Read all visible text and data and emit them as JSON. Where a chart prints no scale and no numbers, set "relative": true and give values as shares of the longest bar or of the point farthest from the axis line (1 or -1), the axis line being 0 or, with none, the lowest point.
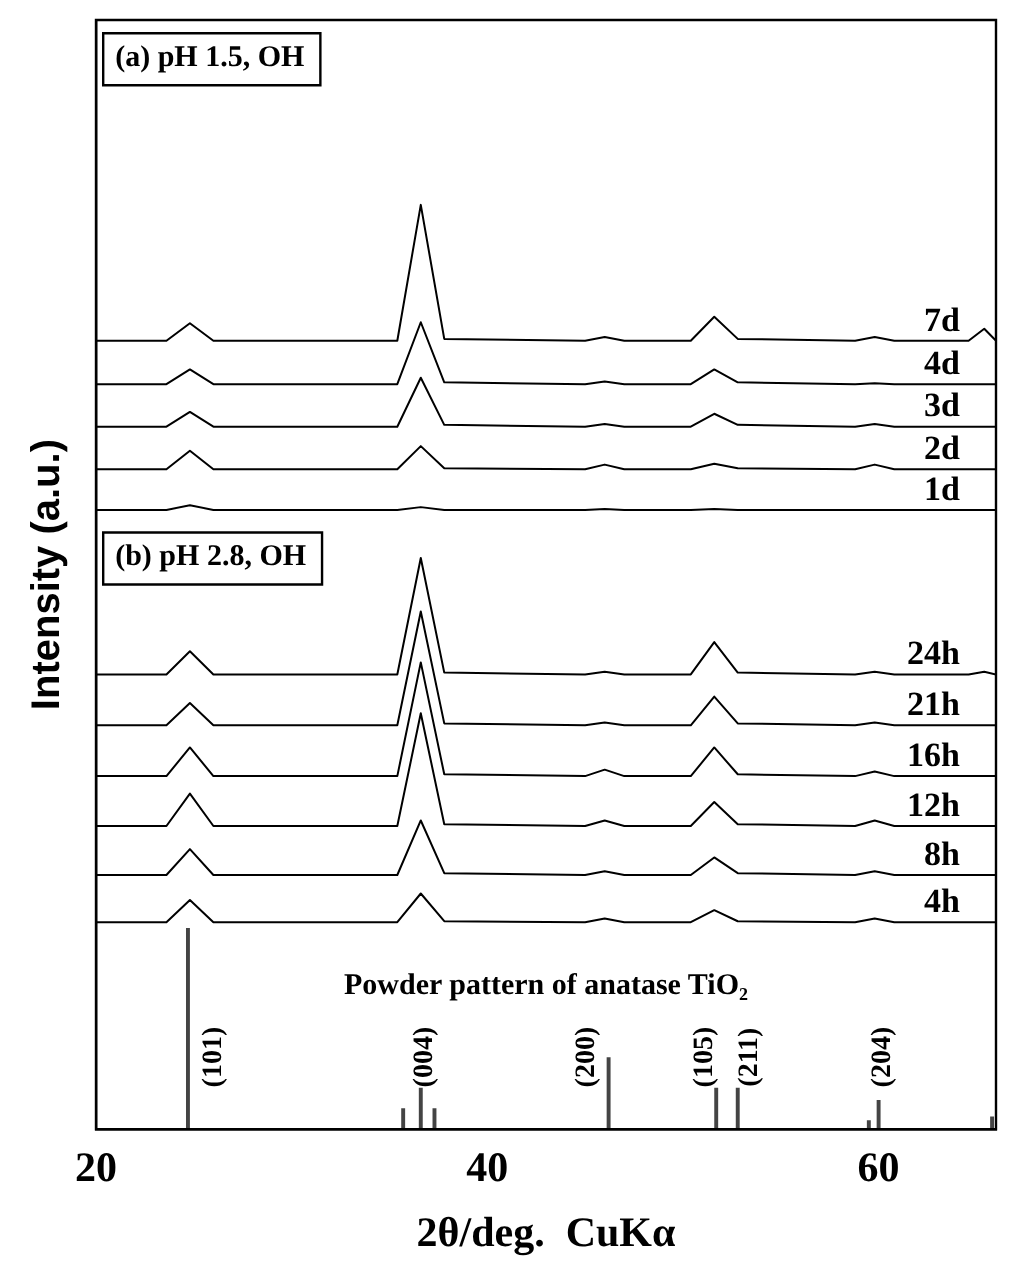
{
  "chart_data": {
    "type": "line",
    "relative": true,
    "xlabel": "2θ/deg.  CuKα",
    "ylabel": "Intensity (a.u.)",
    "x": [
      20,
      23.6,
      24.8,
      26,
      35.4,
      36.6,
      37.8,
      45,
      46,
      47,
      50.4,
      51.6,
      52.8,
      58.8,
      59.8,
      60.8,
      64.6,
      65.4,
      66
    ],
    "xlim": [
      20,
      66
    ],
    "xticks": [
      20,
      40,
      60
    ],
    "grid": false,
    "legend": false,
    "tick_labels": "x",
    "marker": "none",
    "series": [
      {
        "name": "7d",
        "color": "#000000",
        "values": [
          0.853,
          0.853,
          0.872,
          0.853,
          0.853,
          1,
          0.855,
          0.853,
          0.857,
          0.853,
          0.853,
          0.879,
          0.855,
          0.853,
          0.857,
          0.853,
          0.853,
          0.866,
          0.853
        ]
      },
      {
        "name": "4d",
        "color": "#000000",
        "values": [
          0.806,
          0.806,
          0.822,
          0.806,
          0.806,
          0.873,
          0.808,
          0.806,
          0.809,
          0.806,
          0.806,
          0.822,
          0.808,
          0.806,
          0.807,
          0.806,
          0.806,
          0.806,
          0.806
        ]
      },
      {
        "name": "3d",
        "color": "#000000",
        "values": [
          0.76,
          0.76,
          0.776,
          0.76,
          0.76,
          0.813,
          0.762,
          0.76,
          0.763,
          0.76,
          0.76,
          0.774,
          0.762,
          0.76,
          0.763,
          0.76,
          0.76,
          0.76,
          0.76
        ]
      },
      {
        "name": "2d",
        "color": "#000000",
        "values": [
          0.714,
          0.714,
          0.734,
          0.714,
          0.714,
          0.739,
          0.715,
          0.714,
          0.719,
          0.714,
          0.714,
          0.72,
          0.715,
          0.714,
          0.719,
          0.714,
          0.714,
          0.714,
          0.714
        ]
      },
      {
        "name": "1d",
        "color": "#000000",
        "values": [
          0.67,
          0.67,
          0.675,
          0.67,
          0.67,
          0.673,
          0.67,
          0.67,
          0.671,
          0.67,
          0.67,
          0.671,
          0.67,
          0.67,
          0.67,
          0.67,
          0.67,
          0.67,
          0.67
        ]
      },
      {
        "name": "24h",
        "color": "#000000",
        "values": [
          0.492,
          0.492,
          0.517,
          0.492,
          0.492,
          0.618,
          0.494,
          0.492,
          0.495,
          0.492,
          0.492,
          0.527,
          0.494,
          0.492,
          0.495,
          0.492,
          0.492,
          0.495,
          0.492
        ]
      },
      {
        "name": "21h",
        "color": "#000000",
        "values": [
          0.437,
          0.437,
          0.461,
          0.437,
          0.437,
          0.56,
          0.439,
          0.437,
          0.44,
          0.437,
          0.437,
          0.468,
          0.439,
          0.437,
          0.44,
          0.437,
          0.437,
          0.437,
          0.437
        ]
      },
      {
        "name": "16h",
        "color": "#000000",
        "values": [
          0.382,
          0.382,
          0.413,
          0.382,
          0.382,
          0.505,
          0.384,
          0.382,
          0.389,
          0.382,
          0.382,
          0.413,
          0.384,
          0.382,
          0.387,
          0.382,
          0.382,
          0.382,
          0.382
        ]
      },
      {
        "name": "12h",
        "color": "#000000",
        "values": [
          0.328,
          0.328,
          0.363,
          0.328,
          0.328,
          0.45,
          0.33,
          0.328,
          0.334,
          0.328,
          0.328,
          0.354,
          0.33,
          0.328,
          0.334,
          0.328,
          0.328,
          0.328,
          0.328
        ]
      },
      {
        "name": "8h",
        "color": "#000000",
        "values": [
          0.275,
          0.275,
          0.303,
          0.275,
          0.275,
          0.334,
          0.277,
          0.275,
          0.279,
          0.275,
          0.275,
          0.294,
          0.277,
          0.275,
          0.279,
          0.275,
          0.275,
          0.275,
          0.275
        ]
      },
      {
        "name": "4h",
        "color": "#000000",
        "values": [
          0.224,
          0.224,
          0.248,
          0.224,
          0.224,
          0.255,
          0.225,
          0.224,
          0.228,
          0.224,
          0.224,
          0.237,
          0.225,
          0.224,
          0.228,
          0.224,
          0.224,
          0.224,
          0.224
        ]
      },
      {
        "type": "bar",
        "color": "#444444",
        "x": [
          24.7,
          35.7,
          36.6,
          37.3,
          46.2,
          51.7,
          52.8,
          59.5,
          60,
          65.8
        ],
        "values": [
          0.217,
          0.022,
          0.044,
          0.022,
          0.077,
          0.044,
          0.044,
          0.009,
          0.031,
          0.013
        ]
      }
    ],
    "annotations": [
      "(a) pH 1.5, OH",
      "(b) pH 2.8, OH",
      "Powder pattern of anatase TiO₂",
      "(101)",
      "(004)",
      "(200)",
      "(105)",
      "(211)",
      "(204)"
    ]
  }
}
